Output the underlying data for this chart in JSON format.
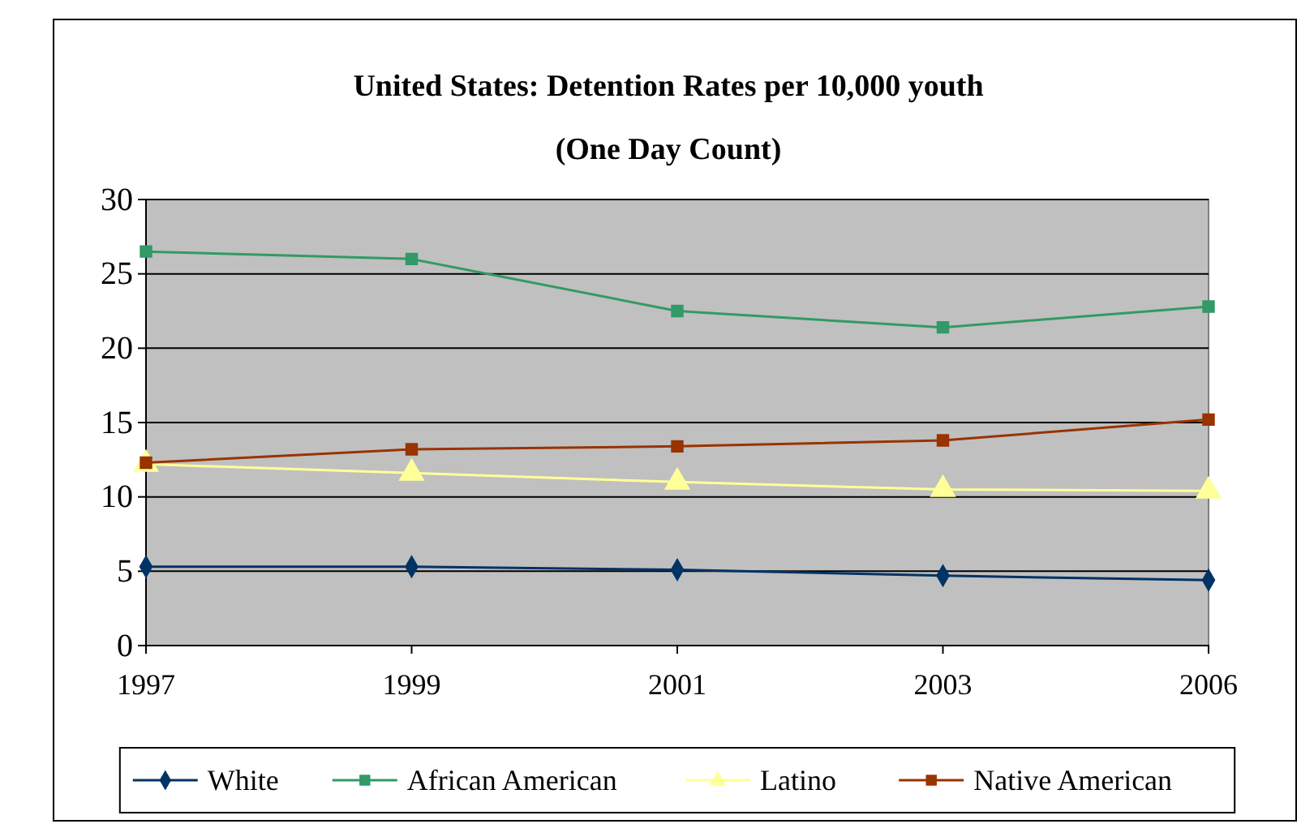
{
  "chart_data": {
    "type": "line",
    "title": "United States: Detention Rates per 10,000 youth",
    "subtitle": "(One Day Count)",
    "categories": [
      "1997",
      "1999",
      "2001",
      "2003",
      "2006"
    ],
    "ylim": [
      0,
      30
    ],
    "yticks": [
      0,
      5,
      10,
      15,
      20,
      25,
      30
    ],
    "grid": "y",
    "legend": "bottom",
    "series": [
      {
        "name": "White",
        "color": "#003366",
        "marker": "diamond",
        "values": [
          5.3,
          5.3,
          5.1,
          4.7,
          4.4
        ]
      },
      {
        "name": "African American",
        "color": "#339966",
        "marker": "square",
        "values": [
          26.5,
          26.0,
          22.5,
          21.4,
          22.8
        ]
      },
      {
        "name": "Latino",
        "color": "#ffff99",
        "marker": "triangle",
        "values": [
          12.2,
          11.6,
          11.0,
          10.5,
          10.4
        ]
      },
      {
        "name": "Native American",
        "color": "#993300",
        "marker": "square",
        "values": [
          12.3,
          13.2,
          13.4,
          13.8,
          15.2
        ]
      }
    ]
  }
}
